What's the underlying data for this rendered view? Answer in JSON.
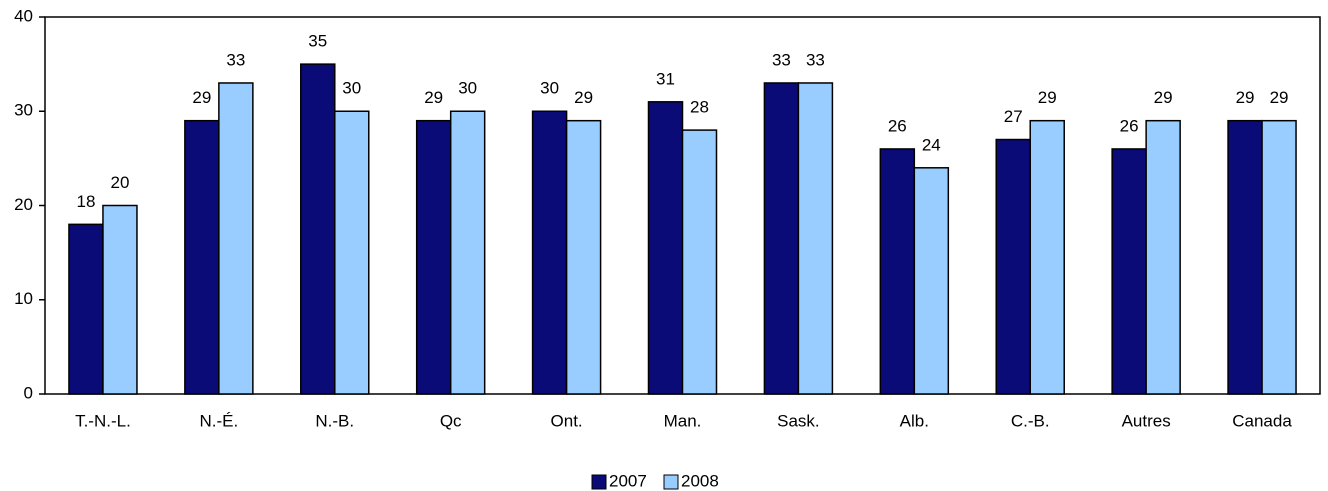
{
  "chart_data": {
    "type": "bar",
    "categories": [
      "T.-N.-L.",
      "N.-É.",
      "N.-B.",
      "Qc",
      "Ont.",
      "Man.",
      "Sask.",
      "Alb.",
      "C.-B.",
      "Autres",
      "Canada"
    ],
    "series": [
      {
        "name": "2007",
        "color": "#0b0b78",
        "values": [
          18,
          29,
          35,
          29,
          30,
          31,
          33,
          26,
          27,
          26,
          29
        ]
      },
      {
        "name": "2008",
        "color": "#99ccff",
        "values": [
          20,
          33,
          30,
          30,
          29,
          28,
          33,
          24,
          29,
          29,
          29
        ]
      }
    ],
    "ylim": [
      0,
      40
    ],
    "yticks": [
      0,
      10,
      20,
      30,
      40
    ],
    "grid": false,
    "legend": "bottom"
  }
}
